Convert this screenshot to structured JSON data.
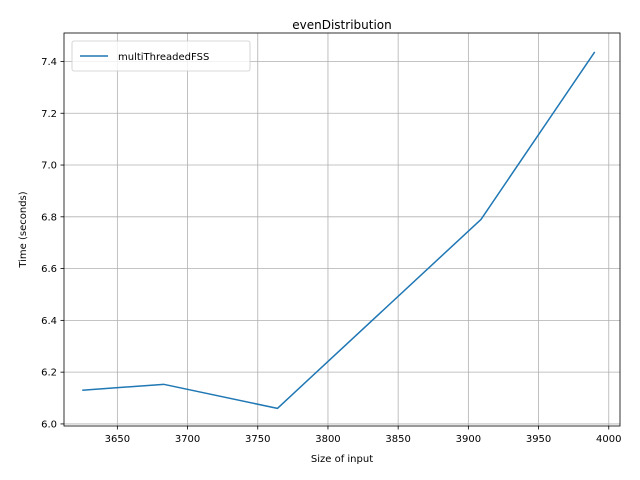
{
  "chart_data": {
    "type": "line",
    "title": "evenDistribution",
    "xlabel": "Size of input",
    "ylabel": "Time (seconds)",
    "xlim": [
      3612,
      4008
    ],
    "ylim": [
      5.992,
      7.51
    ],
    "xticks": [
      3650,
      3700,
      3750,
      3800,
      3850,
      3900,
      3950,
      4000
    ],
    "yticks": [
      6.0,
      6.2,
      6.4,
      6.6,
      6.8,
      7.0,
      7.2,
      7.4
    ],
    "grid": true,
    "legend_position": "upper-left",
    "series": [
      {
        "name": "multiThreadedFSS",
        "color": "#1f77b4",
        "x": [
          3625,
          3683,
          3764,
          3909,
          3990
        ],
        "y": [
          6.13,
          6.153,
          6.06,
          6.79,
          7.437
        ]
      }
    ]
  }
}
